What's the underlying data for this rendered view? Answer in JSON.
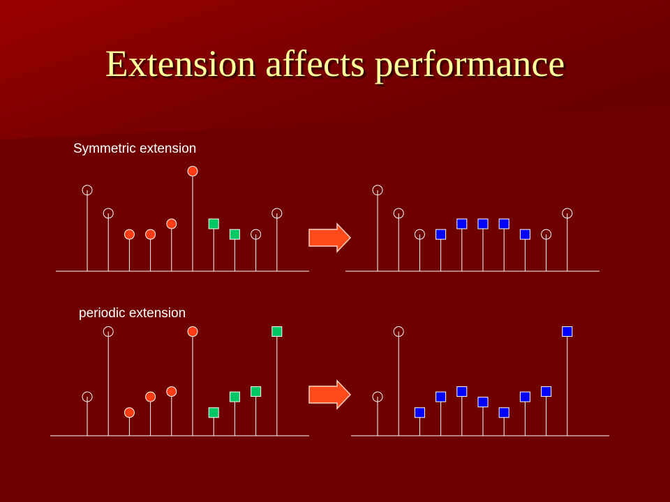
{
  "title": "Extension affects performance",
  "sections": {
    "symmetric": {
      "label": "Symmetric extension",
      "input": [
        {
          "v": 0.77,
          "m": "circle-open"
        },
        {
          "v": 0.55,
          "m": "circle-open"
        },
        {
          "v": 0.35,
          "m": "circle-red"
        },
        {
          "v": 0.35,
          "m": "circle-red"
        },
        {
          "v": 0.45,
          "m": "circle-red"
        },
        {
          "v": 0.95,
          "m": "circle-red"
        },
        {
          "v": 0.45,
          "m": "square-green"
        },
        {
          "v": 0.35,
          "m": "square-green"
        },
        {
          "v": 0.35,
          "m": "circle-open"
        },
        {
          "v": 0.55,
          "m": "circle-open"
        }
      ],
      "output": [
        {
          "v": 0.77,
          "m": "circle-open"
        },
        {
          "v": 0.55,
          "m": "circle-open"
        },
        {
          "v": 0.35,
          "m": "circle-open"
        },
        {
          "v": 0.35,
          "m": "square-blue"
        },
        {
          "v": 0.45,
          "m": "square-blue"
        },
        {
          "v": 0.45,
          "m": "square-blue"
        },
        {
          "v": 0.45,
          "m": "square-blue"
        },
        {
          "v": 0.35,
          "m": "square-blue"
        },
        {
          "v": 0.35,
          "m": "circle-open"
        },
        {
          "v": 0.55,
          "m": "circle-open"
        }
      ]
    },
    "periodic": {
      "label": "periodic extension",
      "input": [
        {
          "v": 0.37,
          "m": "circle-open"
        },
        {
          "v": 0.99,
          "m": "circle-open"
        },
        {
          "v": 0.22,
          "m": "circle-red"
        },
        {
          "v": 0.37,
          "m": "circle-red"
        },
        {
          "v": 0.42,
          "m": "circle-red"
        },
        {
          "v": 0.99,
          "m": "circle-red"
        },
        {
          "v": 0.22,
          "m": "square-green"
        },
        {
          "v": 0.37,
          "m": "square-green"
        },
        {
          "v": 0.42,
          "m": "square-green"
        },
        {
          "v": 0.99,
          "m": "square-green"
        }
      ],
      "output": [
        {
          "v": 0.37,
          "m": "circle-open"
        },
        {
          "v": 0.99,
          "m": "circle-open"
        },
        {
          "v": 0.22,
          "m": "square-blue"
        },
        {
          "v": 0.37,
          "m": "square-blue"
        },
        {
          "v": 0.42,
          "m": "square-blue"
        },
        {
          "v": 0.32,
          "m": "square-blue"
        },
        {
          "v": 0.22,
          "m": "square-blue"
        },
        {
          "v": 0.37,
          "m": "square-blue"
        },
        {
          "v": 0.42,
          "m": "square-blue"
        },
        {
          "v": 0.99,
          "m": "square-blue"
        }
      ]
    }
  },
  "colors": {
    "background": "#6e0000",
    "title": "#ffff9c",
    "stem": "#ffffff",
    "red_marker": "#ff3c14",
    "green_marker": "#00c864",
    "blue_marker": "#0000ff",
    "arrow": "#ff4a1c"
  }
}
